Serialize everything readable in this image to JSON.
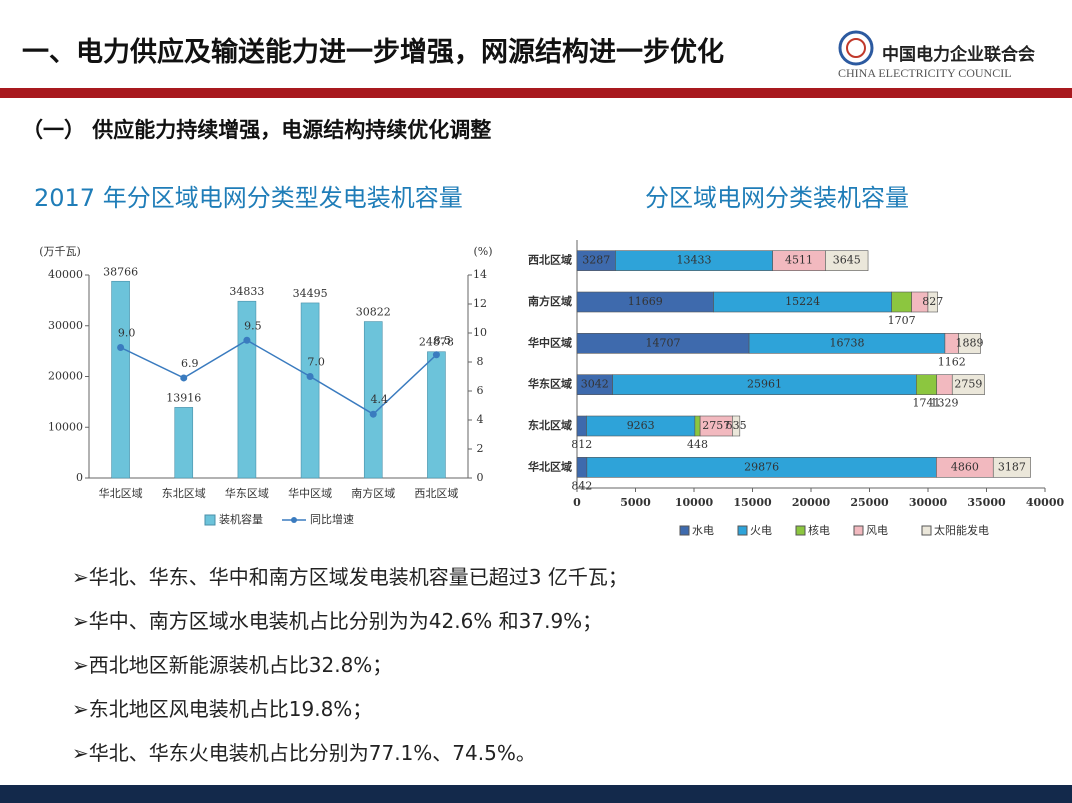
{
  "header": {
    "title": "一、电力供应及输送能力进一步增强，网源结构进一步优化",
    "logo_cn": "中国电力企业联合会",
    "logo_en": "CHINA ELECTRICITY COUNCIL"
  },
  "section": "（一） 供应能力持续增强，电源结构持续优化调整",
  "chart_data": [
    {
      "type": "combo",
      "title": "2017 年分区域电网分类型发电装机容量",
      "y_label": "(万千瓦)",
      "y2_label": "(%)",
      "categories": [
        "华北区域",
        "东北区域",
        "华东区域",
        "华中区域",
        "南方区域",
        "西北区域"
      ],
      "series": [
        {
          "name": "装机容量",
          "type": "bar",
          "color": "#6cc3da",
          "values": [
            38766,
            13916,
            34833,
            34495,
            30822,
            24878
          ]
        },
        {
          "name": "同比增速",
          "type": "line",
          "axis": "y2",
          "color": "#3a7bbf",
          "values": [
            9.0,
            6.9,
            9.5,
            7.0,
            4.4,
            8.5
          ],
          "value_labels": [
            "9.0",
            "6.9",
            "9.5",
            "7.0",
            "4.4",
            "8.5"
          ]
        }
      ],
      "ylim": [
        0,
        40000
      ],
      "yticks": [
        0,
        10000,
        20000,
        30000,
        40000
      ],
      "y2lim": [
        0,
        14
      ],
      "y2ticks": [
        0,
        2,
        4,
        6,
        8,
        10,
        12,
        14
      ],
      "grid": false
    },
    {
      "type": "stacked-barh",
      "title": "分区域电网分类装机容量",
      "categories": [
        "西北区域",
        "南方区域",
        "华中区域",
        "华东区域",
        "东北区域",
        "华北区域"
      ],
      "series": [
        {
          "name": "水电",
          "color": "#3e6aad",
          "values": [
            3287,
            11669,
            14707,
            3042,
            812,
            842
          ],
          "value_labels": [
            "3287",
            "11669",
            "14707",
            "3042",
            "812",
            "842"
          ]
        },
        {
          "name": "火电",
          "color": "#2ea3d9",
          "values": [
            13433,
            15224,
            16738,
            25961,
            9263,
            29876
          ],
          "value_labels": [
            "13433",
            "15224",
            "16738",
            "25961",
            "9263",
            "29876"
          ]
        },
        {
          "name": "核电",
          "color": "#8cc63f",
          "values": [
            null,
            1707,
            null,
            1741,
            448,
            null
          ],
          "value_labels": [
            null,
            "1707",
            null,
            "1741",
            "448",
            null
          ]
        },
        {
          "name": "风电",
          "color": "#f2b9bf",
          "values": [
            4511,
            1395,
            1162,
            1329,
            2757,
            4860
          ],
          "value_labels": [
            "4511",
            null,
            "1162",
            "1329",
            "2757",
            "4860"
          ]
        },
        {
          "name": "太阳能发电",
          "color": "#ebe7da",
          "values": [
            3645,
            827,
            1889,
            2759,
            635,
            3187
          ],
          "value_labels": [
            "3645",
            "827",
            "1889",
            "2759",
            "635",
            "3187"
          ]
        }
      ],
      "xlim": [
        0,
        40000
      ],
      "xticks": [
        0,
        5000,
        10000,
        15000,
        20000,
        25000,
        30000,
        35000,
        40000
      ]
    }
  ],
  "bullets": [
    "➢华北、华东、华中和南方区域发电装机容量已超过3 亿千瓦；",
    "➢华中、南方区域水电装机占比分别为为42.6% 和37.9%；",
    "➢西北地区新能源装机占比32.8%；",
    "➢东北地区风电装机占比19.8%；",
    "➢华北、华东火电装机占比分别为77.1%、74.5%。"
  ]
}
